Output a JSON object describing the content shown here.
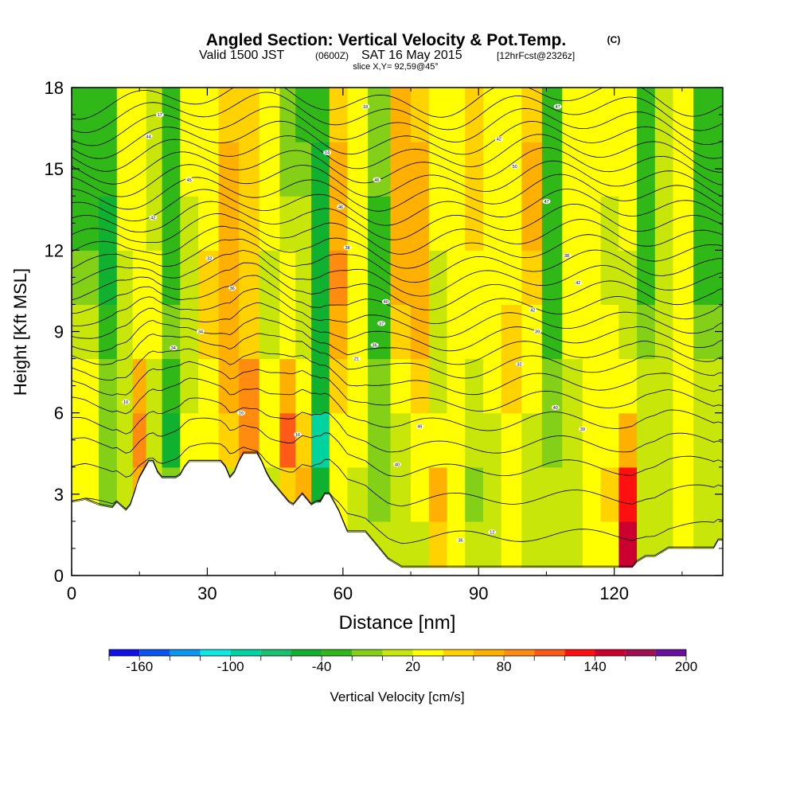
{
  "chart_data": {
    "type": "heatmap",
    "title": "Angled Section: Vertical Velocity & Pot.Temp.",
    "title_tag": "(C)",
    "subtitle": {
      "valid_prefix": "Valid 1500 JST",
      "utc_tag": "(0600Z)",
      "date": "SAT 16 May 2015",
      "forecast_tag": "[12hrFcst@2326z]"
    },
    "slice_label": "slice X,Y= 92,59@45°",
    "xlabel": "Distance [nm]",
    "ylabel": "Height [Kft MSL]",
    "xlim": [
      0,
      144
    ],
    "ylim": [
      0,
      18
    ],
    "x_ticks": [
      0,
      30,
      60,
      90,
      120
    ],
    "x_tick_labels": [
      "0",
      "30",
      "60",
      "90",
      "120"
    ],
    "y_ticks": [
      0,
      3,
      6,
      9,
      12,
      15,
      18
    ],
    "y_tick_labels": [
      "0",
      "3",
      "6",
      "9",
      "12",
      "15",
      "18"
    ],
    "grid": false,
    "colorbar": {
      "label": "Vertical Velocity [cm/s]",
      "placement": "bottom",
      "tick_labels": [
        "-160",
        "-100",
        "-40",
        "20",
        "80",
        "140",
        "200"
      ],
      "tick_values": [
        -160,
        -100,
        -40,
        20,
        80,
        140,
        200
      ],
      "min": -180,
      "max": 200,
      "bin_edges": [
        -180,
        -160,
        -140,
        -120,
        -100,
        -80,
        -60,
        -40,
        -20,
        0,
        20,
        40,
        60,
        80,
        100,
        120,
        140,
        160,
        180,
        200
      ],
      "colors": [
        "#1010e8",
        "#0a55f0",
        "#0b96f0",
        "#10e8e8",
        "#00d2a0",
        "#18c070",
        "#10b030",
        "#30b818",
        "#84d018",
        "#c8e60a",
        "#ffff00",
        "#ffd200",
        "#ffb000",
        "#ff8c10",
        "#ff5a18",
        "#ff1010",
        "#cc0030",
        "#a01050",
        "#6a10a0"
      ]
    },
    "vertical_velocity_cells": {
      "description_units": "cm/s",
      "x_centers": [
        4,
        8,
        12,
        15,
        18,
        22,
        26,
        30,
        35,
        39,
        44,
        48,
        51,
        55,
        59,
        63,
        68,
        73,
        77,
        81,
        85,
        89,
        93,
        97,
        102,
        106,
        111,
        115,
        119,
        123,
        127,
        131,
        135,
        140
      ],
      "y_centers": [
        1,
        3,
        5,
        7,
        9,
        11,
        13,
        15,
        17
      ],
      "values": [
        [
          20,
          0,
          10,
          30,
          10,
          10,
          20,
          10,
          0,
          10,
          20,
          10,
          20,
          10,
          20,
          10,
          0,
          0,
          10,
          40,
          20,
          0,
          10,
          20,
          10,
          0,
          10,
          20,
          20,
          140,
          0,
          10,
          20,
          0
        ],
        [
          20,
          -20,
          10,
          60,
          10,
          -10,
          20,
          10,
          0,
          20,
          10,
          40,
          60,
          -60,
          20,
          10,
          -10,
          0,
          20,
          60,
          30,
          -10,
          10,
          20,
          10,
          0,
          10,
          20,
          40,
          120,
          0,
          10,
          20,
          0
        ],
        [
          20,
          -20,
          10,
          80,
          10,
          -60,
          20,
          20,
          40,
          80,
          20,
          100,
          40,
          -100,
          20,
          20,
          -10,
          10,
          30,
          20,
          20,
          0,
          10,
          30,
          10,
          -10,
          10,
          30,
          30,
          60,
          10,
          10,
          20,
          0
        ],
        [
          20,
          -20,
          10,
          60,
          10,
          -40,
          10,
          30,
          70,
          80,
          20,
          60,
          20,
          -60,
          40,
          20,
          -20,
          20,
          40,
          10,
          20,
          0,
          20,
          40,
          20,
          -20,
          10,
          30,
          30,
          20,
          10,
          10,
          20,
          0
        ],
        [
          0,
          -40,
          10,
          20,
          20,
          -20,
          0,
          40,
          60,
          40,
          10,
          20,
          10,
          -60,
          60,
          20,
          -40,
          40,
          60,
          10,
          20,
          20,
          30,
          40,
          30,
          -40,
          20,
          30,
          20,
          10,
          -20,
          10,
          20,
          -20
        ],
        [
          -20,
          -60,
          10,
          20,
          20,
          -40,
          0,
          40,
          60,
          40,
          10,
          20,
          10,
          -60,
          80,
          20,
          -40,
          60,
          60,
          10,
          20,
          30,
          20,
          20,
          40,
          -40,
          20,
          30,
          10,
          10,
          -40,
          10,
          20,
          -40
        ],
        [
          -40,
          -60,
          20,
          20,
          10,
          -40,
          0,
          30,
          60,
          40,
          20,
          10,
          10,
          -60,
          60,
          20,
          -40,
          60,
          60,
          20,
          30,
          40,
          20,
          20,
          60,
          -40,
          20,
          30,
          10,
          20,
          -40,
          10,
          20,
          -40
        ],
        [
          -40,
          -40,
          20,
          20,
          10,
          -40,
          20,
          30,
          60,
          40,
          20,
          -10,
          -20,
          -60,
          60,
          20,
          -20,
          60,
          60,
          20,
          30,
          40,
          20,
          20,
          60,
          -40,
          20,
          30,
          20,
          20,
          -40,
          10,
          20,
          -40
        ],
        [
          -40,
          -40,
          20,
          20,
          10,
          -40,
          30,
          30,
          40,
          40,
          20,
          -20,
          -40,
          -40,
          40,
          20,
          -20,
          60,
          40,
          20,
          30,
          40,
          20,
          20,
          40,
          -40,
          20,
          30,
          20,
          20,
          -40,
          10,
          20,
          -40
        ]
      ]
    },
    "terrain": {
      "x": [
        0,
        3,
        6,
        9,
        10,
        12,
        13,
        14,
        14.5,
        15,
        16,
        17,
        18,
        19,
        20,
        21,
        22,
        23,
        24,
        25,
        26,
        27,
        28,
        29,
        30,
        31,
        32,
        33,
        34,
        35,
        36,
        37,
        38,
        39,
        40,
        41,
        42,
        43,
        44,
        45,
        46,
        47,
        48,
        49,
        50,
        51,
        52,
        53,
        54,
        55,
        56,
        57,
        58,
        59,
        60,
        61,
        62,
        63,
        64,
        65,
        66,
        67,
        68,
        69,
        70,
        71,
        72,
        73,
        74,
        75,
        76,
        77,
        78,
        79,
        80,
        81,
        82,
        83,
        84,
        85,
        86,
        87,
        88,
        89,
        90,
        91,
        92,
        93,
        94,
        95,
        96,
        97,
        98,
        99,
        100,
        101,
        102,
        103,
        104,
        105,
        106,
        107,
        108,
        109,
        110,
        111,
        112,
        113,
        114,
        115,
        116,
        117,
        118,
        119,
        120,
        121,
        122,
        123,
        124,
        125,
        126,
        127,
        128,
        129,
        130,
        131,
        132,
        133,
        134,
        135,
        136,
        137,
        138,
        139,
        140,
        141,
        142,
        143,
        144
      ],
      "elevation_kft": [
        2.7,
        2.8,
        2.6,
        2.5,
        2.7,
        2.4,
        2.6,
        3.1,
        3.4,
        3.6,
        3.9,
        4.2,
        4.2,
        3.8,
        3.6,
        3.6,
        3.6,
        3.6,
        3.7,
        4.0,
        4.2,
        4.2,
        4.2,
        4.2,
        4.2,
        4.2,
        4.2,
        4.2,
        4.0,
        3.6,
        3.8,
        4.2,
        4.5,
        4.5,
        4.5,
        4.5,
        4.2,
        3.8,
        3.5,
        3.3,
        3.1,
        2.9,
        2.7,
        2.6,
        2.8,
        3.0,
        2.8,
        2.6,
        2.7,
        2.7,
        3.0,
        3.0,
        2.7,
        2.4,
        2.0,
        1.6,
        1.6,
        1.6,
        1.6,
        1.6,
        1.4,
        1.2,
        1.0,
        0.8,
        0.6,
        0.5,
        0.4,
        0.3,
        0.3,
        0.3,
        0.3,
        0.3,
        0.3,
        0.3,
        0.3,
        0.3,
        0.3,
        0.3,
        0.3,
        0.3,
        0.3,
        0.3,
        0.3,
        0.3,
        0.3,
        0.3,
        0.3,
        0.3,
        0.3,
        0.3,
        0.3,
        0.3,
        0.3,
        0.3,
        0.3,
        0.3,
        0.3,
        0.3,
        0.3,
        0.3,
        0.3,
        0.3,
        0.3,
        0.3,
        0.3,
        0.3,
        0.3,
        0.3,
        0.3,
        0.3,
        0.3,
        0.3,
        0.3,
        0.3,
        0.3,
        0.3,
        0.3,
        0.3,
        0.3,
        0.5,
        0.6,
        0.7,
        0.7,
        0.7,
        0.8,
        0.9,
        1.0,
        1.0,
        1.0,
        1.0,
        1.0,
        1.0,
        1.0,
        1.0,
        1.0,
        1.0,
        1.0,
        1.3,
        1.3,
        1.3,
        1.3,
        1.3,
        1.3
      ]
    },
    "theta_contours": {
      "units": "C",
      "base_heights_kft": [
        1.0,
        2.3,
        3.6,
        4.6,
        5.4,
        6.2,
        6.9,
        7.5,
        8.1,
        8.6,
        9.1,
        9.6,
        10.1,
        10.6,
        11.1,
        11.6,
        12.1,
        12.6,
        13.1,
        13.6,
        14.1,
        14.6,
        15.1,
        15.6,
        16.1,
        16.6,
        17.1,
        17.6
      ]
    },
    "contour_labels": [
      {
        "text": "17",
        "x": 19.5,
        "y": 17.0
      },
      {
        "text": "44",
        "x": 17.0,
        "y": 16.2
      },
      {
        "text": "45",
        "x": 26.0,
        "y": 14.6
      },
      {
        "text": "42",
        "x": 18.0,
        "y": 13.2
      },
      {
        "text": "32",
        "x": 30.5,
        "y": 11.7
      },
      {
        "text": "36",
        "x": 35.5,
        "y": 10.6
      },
      {
        "text": "34",
        "x": 28.5,
        "y": 9.0
      },
      {
        "text": "34",
        "x": 22.5,
        "y": 8.4
      },
      {
        "text": "16",
        "x": 12.0,
        "y": 6.4
      },
      {
        "text": "16",
        "x": 37.5,
        "y": 6.0
      },
      {
        "text": "16",
        "x": 50.0,
        "y": 5.2
      },
      {
        "text": "14",
        "x": 56.5,
        "y": 15.6
      },
      {
        "text": "18",
        "x": 65.0,
        "y": 17.3
      },
      {
        "text": "46",
        "x": 67.5,
        "y": 14.6
      },
      {
        "text": "46",
        "x": 59.5,
        "y": 13.6
      },
      {
        "text": "38",
        "x": 61.0,
        "y": 12.1
      },
      {
        "text": "40",
        "x": 69.5,
        "y": 10.1
      },
      {
        "text": "37",
        "x": 68.5,
        "y": 9.3
      },
      {
        "text": "36",
        "x": 67.0,
        "y": 8.5
      },
      {
        "text": "21",
        "x": 63.0,
        "y": 8.0
      },
      {
        "text": "46",
        "x": 77.0,
        "y": 5.5
      },
      {
        "text": "40",
        "x": 72.0,
        "y": 4.1
      },
      {
        "text": "36",
        "x": 86.0,
        "y": 1.3
      },
      {
        "text": "42",
        "x": 94.5,
        "y": 16.1
      },
      {
        "text": "50",
        "x": 98.0,
        "y": 15.1
      },
      {
        "text": "47",
        "x": 107.5,
        "y": 17.3
      },
      {
        "text": "47",
        "x": 105.0,
        "y": 13.8
      },
      {
        "text": "38",
        "x": 109.5,
        "y": 11.8
      },
      {
        "text": "42",
        "x": 112.0,
        "y": 10.8
      },
      {
        "text": "42",
        "x": 102.0,
        "y": 9.8
      },
      {
        "text": "39",
        "x": 103.0,
        "y": 9.0
      },
      {
        "text": "32",
        "x": 99.0,
        "y": 7.8
      },
      {
        "text": "40",
        "x": 107.0,
        "y": 6.2
      },
      {
        "text": "39",
        "x": 113.0,
        "y": 5.4
      },
      {
        "text": "12",
        "x": 93.0,
        "y": 1.6
      }
    ]
  }
}
